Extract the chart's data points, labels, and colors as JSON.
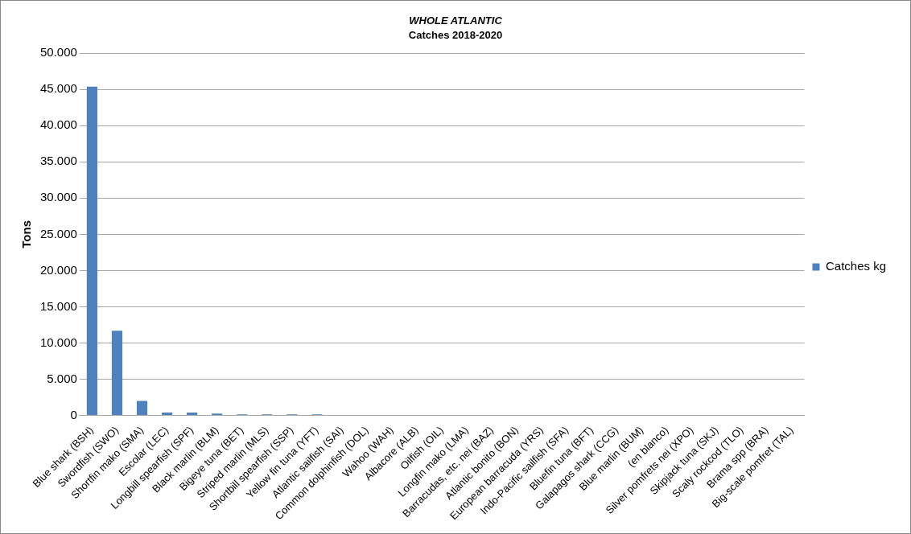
{
  "chart_data": {
    "type": "bar",
    "title": "WHOLE ATLANTIC",
    "subtitle": "Catches 2018-2020",
    "ylabel": "Tons",
    "categories": [
      "Blue shark (BSH)",
      "Swordfish (SWO)",
      "Shortfin mako (SMA)",
      "Escolar (LEC)",
      "Longbill spearfish (SPF)",
      "Black marlin (BLM)",
      "Bigeye tuna (BET)",
      "Striped marlin (MLS)",
      "Shortbill spearfish (SSP)",
      "Yellow fin tuna (YFT)",
      "Atlantic sailfish (SAI)",
      "Common dolphinfish (DOL)",
      "Wahoo (WAH)",
      "Albacore (ALB)",
      "Oilfish (OIL)",
      "Longfin mako (LMA)",
      "Barracudas, etc. nei (BAZ)",
      "Atlantic bonito (BON)",
      "European barracuda (YRS)",
      "Indo-Pacific sailfish (SFA)",
      "Bluefin tuna (BFT)",
      "Galapagos shark (CCG)",
      "Blue marlin (BUM)",
      "(en blanco)",
      "Silver pomfrets nei (XPO)",
      "Skipjack tuna (SKJ)",
      "Scaly rockcod (TLO)",
      "Brama spp (BRA)",
      "Big-scale pomfret (TAL)"
    ],
    "series": [
      {
        "name": "Catches kg",
        "color": "#4f81bd",
        "values": [
          45400,
          11700,
          2000,
          400,
          400,
          250,
          150,
          150,
          150,
          150,
          0,
          0,
          0,
          0,
          0,
          0,
          0,
          0,
          0,
          0,
          0,
          0,
          0,
          0,
          0,
          0,
          0,
          0,
          0
        ]
      }
    ],
    "ylim": [
      0,
      50000
    ],
    "yticks": [
      {
        "value": 0,
        "label": "0"
      },
      {
        "value": 5000,
        "label": "5.000"
      },
      {
        "value": 10000,
        "label": "10.000"
      },
      {
        "value": 15000,
        "label": "15.000"
      },
      {
        "value": 20000,
        "label": "20.000"
      },
      {
        "value": 25000,
        "label": "25.000"
      },
      {
        "value": 30000,
        "label": "30.000"
      },
      {
        "value": 35000,
        "label": "35.000"
      },
      {
        "value": 40000,
        "label": "40.000"
      },
      {
        "value": 45000,
        "label": "45.000"
      },
      {
        "value": 50000,
        "label": "50.000"
      }
    ],
    "grid": "y",
    "legend": "right"
  }
}
